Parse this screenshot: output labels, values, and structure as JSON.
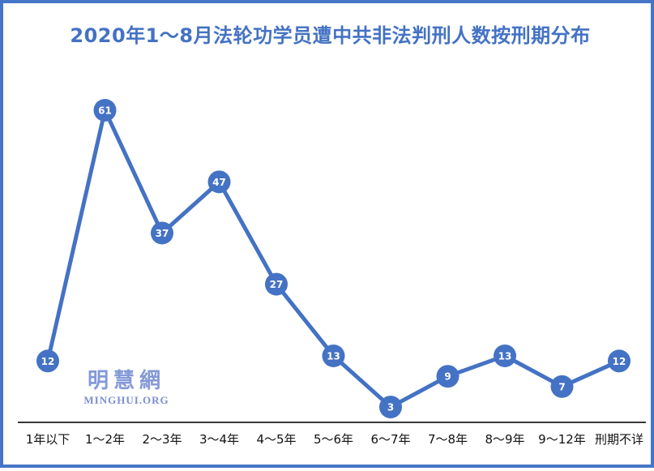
{
  "page": {
    "background_color": "#ffffff",
    "border_color": "#4576C6"
  },
  "title": "2020年1～8月法轮功学员遭中共非法判刑人数按刑期分布",
  "watermark": {
    "cjk": "明慧網",
    "latin": "MINGHUI.ORG"
  },
  "chart_data": {
    "type": "line",
    "title": "2020年1～8月法轮功学员遭中共非法判刑人数按刑期分布",
    "categories": [
      "1年以下",
      "1～2年",
      "2～3年",
      "3～4年",
      "4～5年",
      "5～6年",
      "6～7年",
      "7～8年",
      "8～9年",
      "9～12年",
      "刑期不详"
    ],
    "values": [
      12,
      61,
      37,
      47,
      27,
      13,
      3,
      9,
      13,
      7,
      12
    ],
    "xlabel": "",
    "ylabel": "",
    "ylim": [
      0,
      61
    ],
    "grid": false,
    "legend": false,
    "data_labels": true,
    "colors": {
      "line": "#4472C4",
      "marker": "#4472C4",
      "marker_label": "#ffffff",
      "axis_line": "#383838",
      "tick_label": "#111111",
      "title": "#4472C4"
    }
  }
}
